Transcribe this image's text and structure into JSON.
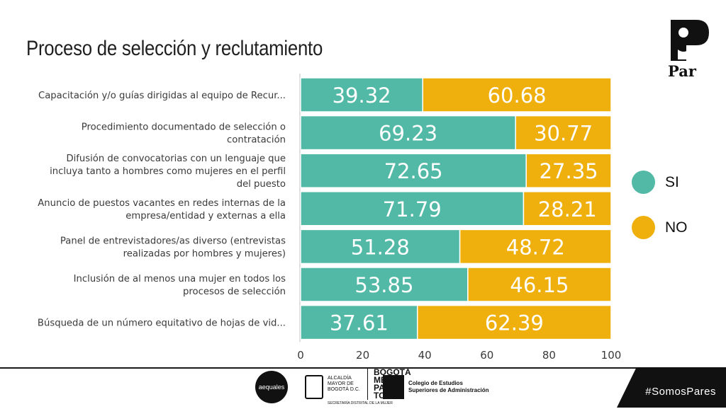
{
  "title": "Proceso de selección y reclutamiento",
  "brand": {
    "name": "Par",
    "hashtag": "#SomosPares"
  },
  "legend": [
    {
      "label": "SI",
      "color": "#52b9a6"
    },
    {
      "label": "NO",
      "color": "#efb00d"
    }
  ],
  "sponsors": {
    "aequales": "aequales",
    "alcaldia": "ALCALDÍA MAYOR DE BOGOTÁ D.C.",
    "bogota": "BOGOTÁ MEJOR PARA TODAS",
    "secretaria": "SECRETARÍA DISTRITAL DE LA MUJER",
    "cesa": "Colegio de Estudios Superiores de Administración"
  },
  "chart_data": {
    "type": "bar",
    "orientation": "horizontal",
    "stacked": true,
    "categories": [
      [
        "Capacitación y/o guías dirigidas al equipo de Recur..."
      ],
      [
        "Procedimiento documentado de selección o",
        "contratación"
      ],
      [
        "Difusión de convocatorias con un lenguaje que",
        "incluya tanto a hombres como mujeres en el perfil",
        "del puesto"
      ],
      [
        "Anuncio de puestos vacantes en redes internas de la",
        "empresa/entidad y externas a ella"
      ],
      [
        "Panel de entrevistadores/as diverso (entrevistas",
        "realizadas por hombres y mujeres)"
      ],
      [
        "Inclusión de al menos una mujer en todos los",
        "procesos de selección"
      ],
      [
        "Búsqueda de un número equitativo de hojas de vid..."
      ]
    ],
    "series": [
      {
        "name": "SI",
        "color": "#52b9a6",
        "values": [
          39.32,
          69.23,
          72.65,
          71.79,
          51.28,
          53.85,
          37.61
        ]
      },
      {
        "name": "NO",
        "color": "#efb00d",
        "values": [
          60.68,
          30.77,
          27.35,
          28.21,
          48.72,
          46.15,
          62.39
        ]
      }
    ],
    "xlim": [
      0,
      100
    ],
    "xticks": [
      0,
      20,
      40,
      60,
      80,
      100
    ],
    "legend_position": "right",
    "grid": false
  }
}
